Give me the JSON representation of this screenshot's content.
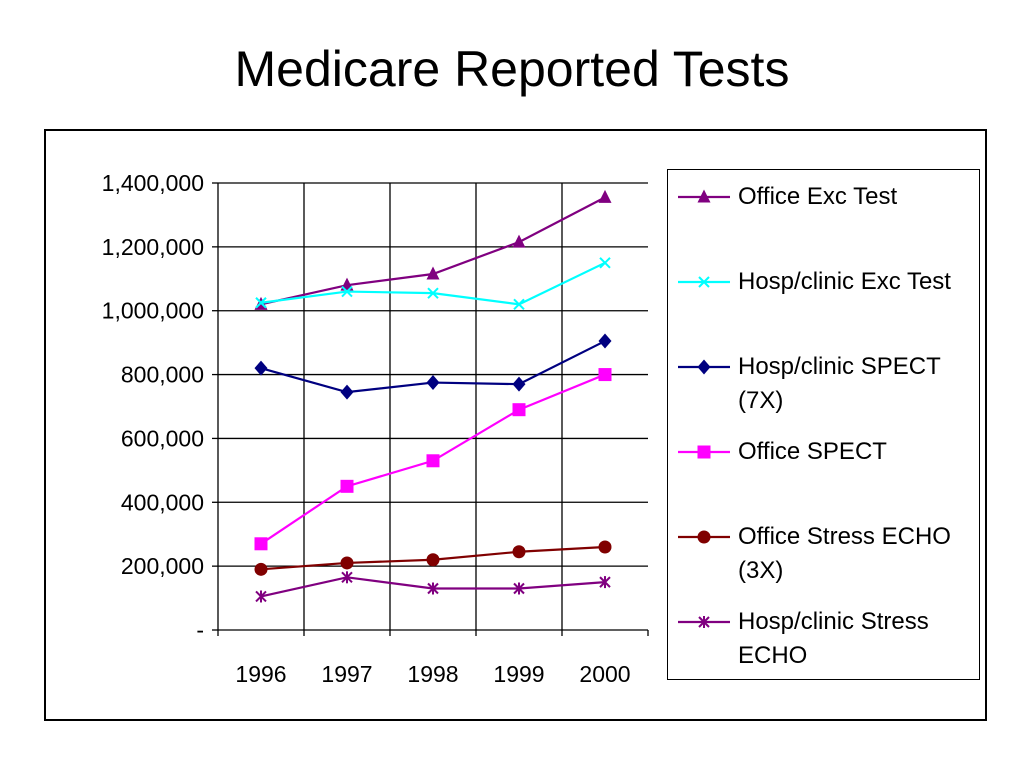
{
  "slide": {
    "title": "Medicare Reported Tests"
  },
  "chart_data": {
    "type": "line",
    "title": "",
    "xlabel": "",
    "ylabel": "",
    "categories": [
      "1996",
      "1997",
      "1998",
      "1999",
      "2000"
    ],
    "ylim": [
      0,
      1400000
    ],
    "yticks": [
      0,
      200000,
      400000,
      600000,
      800000,
      1000000,
      1200000,
      1400000
    ],
    "ytick_labels": [
      "-",
      "200,000",
      "400,000",
      "600,000",
      "800,000",
      "1,000,000",
      "1,200,000",
      "1,400,000"
    ],
    "grid": "vertical and horizontal",
    "legend_position": "right",
    "series": [
      {
        "name": "Office Exc Test",
        "color": "#800080",
        "marker": "triangle",
        "values": [
          1020000,
          1080000,
          1115000,
          1215000,
          1355000
        ]
      },
      {
        "name": "Hosp/clinic Exc Test",
        "color": "#00ffff",
        "marker": "x",
        "values": [
          1025000,
          1060000,
          1055000,
          1020000,
          1150000
        ]
      },
      {
        "name": "Hosp/clinic SPECT (7X)",
        "color": "#000080",
        "marker": "diamond",
        "values": [
          820000,
          745000,
          775000,
          770000,
          905000
        ]
      },
      {
        "name": "Office SPECT",
        "color": "#ff00ff",
        "marker": "square",
        "values": [
          270000,
          450000,
          530000,
          690000,
          800000
        ]
      },
      {
        "name": "Office Stress ECHO (3X)",
        "color": "#800000",
        "marker": "circle",
        "values": [
          190000,
          210000,
          220000,
          245000,
          260000
        ]
      },
      {
        "name": "Hosp/clinic Stress ECHO",
        "color": "#800080",
        "marker": "star",
        "values": [
          105000,
          165000,
          130000,
          130000,
          150000
        ]
      }
    ]
  }
}
